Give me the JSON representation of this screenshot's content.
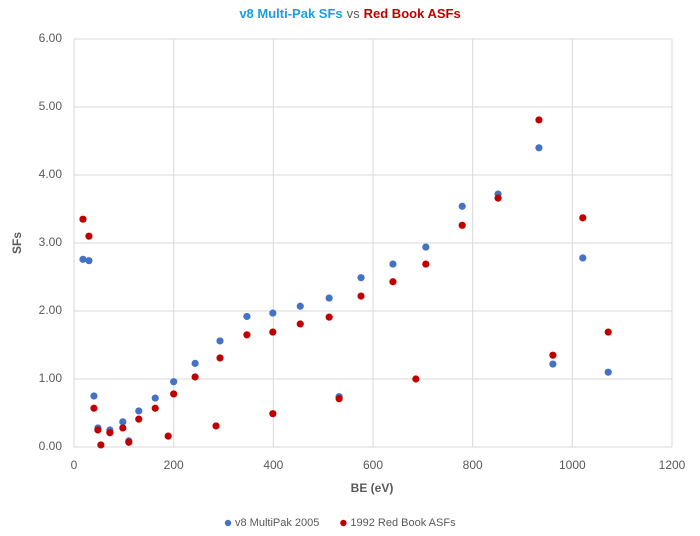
{
  "chart_data": {
    "type": "scatter",
    "title": [
      "v8 Multi-Pak SFs",
      "vs",
      "Red Book ASFs"
    ],
    "title_colors": [
      "#1a9ee0",
      "#595959",
      "#c00000"
    ],
    "x_label": "BE (eV)",
    "y_label": "SFs",
    "xlim": [
      0,
      1200
    ],
    "xticks": [
      0,
      200,
      400,
      600,
      800,
      1000,
      1200
    ],
    "ylim": [
      0,
      6
    ],
    "yticks": [
      {
        "value": 0,
        "label": "0.00"
      },
      {
        "value": 1,
        "label": "1.00"
      },
      {
        "value": 2,
        "label": "2.00"
      },
      {
        "value": 3,
        "label": "3.00"
      },
      {
        "value": 4,
        "label": "4.00"
      },
      {
        "value": 5,
        "label": "5.00"
      },
      {
        "value": 6,
        "label": "6.00"
      }
    ],
    "grid": true,
    "legend": "bottom",
    "series": [
      {
        "name": "v8 MultiPak 2005",
        "color": "#4472c4",
        "x": [
          18,
          30,
          40,
          48,
          72,
          98,
          110,
          130,
          163,
          200,
          243,
          293,
          347,
          399,
          454,
          512,
          532,
          576,
          640,
          706,
          779,
          851,
          933,
          961,
          1021,
          1072
        ],
        "values": [
          2.76,
          2.74,
          0.75,
          0.28,
          0.25,
          0.37,
          0.09,
          0.53,
          0.72,
          0.96,
          1.23,
          1.56,
          1.92,
          1.97,
          2.07,
          2.19,
          0.74,
          2.49,
          2.69,
          2.94,
          3.54,
          3.72,
          4.4,
          1.22,
          2.78,
          1.1
        ]
      },
      {
        "name": "1992 Red Book ASFs",
        "color": "#c00000",
        "x": [
          18,
          30,
          40,
          48,
          54,
          72,
          98,
          110,
          130,
          163,
          189,
          200,
          243,
          285,
          293,
          347,
          399,
          399,
          454,
          512,
          532,
          576,
          640,
          686,
          706,
          779,
          851,
          933,
          961,
          1021,
          1072
        ],
        "values": [
          3.35,
          3.1,
          0.57,
          0.25,
          0.03,
          0.21,
          0.28,
          0.07,
          0.41,
          0.57,
          0.16,
          0.78,
          1.03,
          0.31,
          1.31,
          1.65,
          0.49,
          1.69,
          1.81,
          1.91,
          0.71,
          2.22,
          2.43,
          1.0,
          2.69,
          3.26,
          3.66,
          4.81,
          1.35,
          3.37,
          1.69
        ]
      }
    ]
  }
}
